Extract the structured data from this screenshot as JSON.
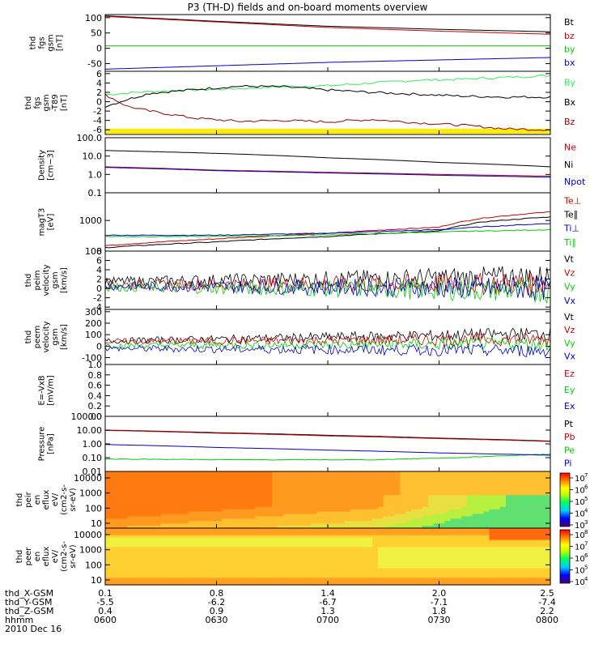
{
  "title": "P3 (TH-D) fields and on-board moments overview",
  "colors": {
    "black": "#000000",
    "red": "#cc0000",
    "green": "#00cc00",
    "blue": "#0000cc",
    "darkred": "#990000",
    "brightgreen": "#33ee55",
    "yellow": "#ffee00"
  },
  "chart_data": [
    {
      "type": "line",
      "panel": "fgs",
      "ylabel": [
        "thd",
        "fgs",
        "gsm",
        "[nT]"
      ],
      "yticks": [
        "100",
        "50",
        "0",
        "-50"
      ],
      "ylim": [
        -75,
        110
      ],
      "series": [
        {
          "name": "Bt",
          "color": "#000000",
          "x": [
            0,
            0.25,
            0.5,
            0.75,
            1
          ],
          "y": [
            106,
            88,
            72,
            62,
            54
          ]
        },
        {
          "name": "bz",
          "color": "#cc0000",
          "x": [
            0,
            0.25,
            0.5,
            0.75,
            1
          ],
          "y": [
            104,
            86,
            68,
            56,
            46
          ]
        },
        {
          "name": "by",
          "color": "#00cc00",
          "x": [
            0,
            1
          ],
          "y": [
            8,
            8
          ]
        },
        {
          "name": "bx",
          "color": "#0000cc",
          "x": [
            0,
            0.25,
            0.5,
            0.75,
            1
          ],
          "y": [
            -68,
            -57,
            -46,
            -38,
            -30
          ]
        }
      ]
    },
    {
      "type": "line",
      "panel": "fgs_t89",
      "ylabel": [
        "thd",
        "fgs",
        "gsm",
        "-T89",
        "[nT]"
      ],
      "yticks": [
        "6",
        "4",
        "2",
        "0",
        "-2",
        "-4",
        "-6"
      ],
      "ylim": [
        -7,
        6.5
      ],
      "series": [
        {
          "name": "By",
          "color": "#33ee55",
          "x": [
            0,
            0.1,
            0.2,
            0.3,
            0.4,
            0.5,
            0.6,
            0.7,
            0.8,
            0.9,
            1
          ],
          "y": [
            1.5,
            2.2,
            2.5,
            2.8,
            3.2,
            3.4,
            4,
            4.6,
            4.8,
            5.2,
            5.6
          ]
        },
        {
          "name": "Bx",
          "color": "#000000",
          "x": [
            0,
            0.05,
            0.1,
            0.2,
            0.3,
            0.4,
            0.5,
            0.6,
            0.7,
            0.8,
            0.9,
            1
          ],
          "y": [
            -1,
            0.5,
            1.8,
            2.6,
            3.3,
            3.2,
            2.5,
            2,
            1.6,
            1.2,
            1,
            1
          ]
        },
        {
          "name": "Bz",
          "color": "#990000",
          "x": [
            0,
            0.05,
            0.1,
            0.2,
            0.3,
            0.4,
            0.5,
            0.6,
            0.7,
            0.8,
            0.9,
            1
          ],
          "y": [
            1.5,
            -1,
            -2,
            -3.5,
            -4.2,
            -4,
            -4.3,
            -3.8,
            -4.5,
            -5,
            -5.8,
            -6
          ]
        }
      ]
    },
    {
      "type": "line",
      "panel": "density",
      "log": true,
      "ylabel": [
        "Density",
        "[cm−3]"
      ],
      "yticks": [
        "100.0",
        "10.0",
        "1.0",
        "0.1"
      ],
      "ylim": [
        0.1,
        100
      ],
      "series": [
        {
          "name": "Ne",
          "color": "#cc0000",
          "x": [
            0,
            0.25,
            0.5,
            0.75,
            1
          ],
          "y": [
            2.6,
            1.7,
            1.3,
            1,
            0.8
          ]
        },
        {
          "name": "Ni",
          "color": "#000000",
          "x": [
            0,
            0.25,
            0.5,
            0.75,
            1
          ],
          "y": [
            20,
            14,
            8,
            4.5,
            2.6
          ]
        },
        {
          "name": "Npot",
          "color": "#0000cc",
          "x": [
            0,
            0.25,
            0.5,
            0.75,
            1
          ],
          "y": [
            2.4,
            1.6,
            1.2,
            0.9,
            0.7
          ]
        }
      ]
    },
    {
      "type": "line",
      "panel": "temperature",
      "log": true,
      "ylabel": [
        "magT3",
        "[eV]"
      ],
      "yticks": [
        "1000",
        "100"
      ],
      "ylim": [
        100,
        8000
      ],
      "series": [
        {
          "name": "Te⊥",
          "color": "#cc0000",
          "x": [
            0,
            0.25,
            0.5,
            0.75,
            0.85,
            1
          ],
          "y": [
            150,
            250,
            380,
            600,
            1200,
            1900
          ]
        },
        {
          "name": "Te∥",
          "color": "#000000",
          "x": [
            0,
            0.25,
            0.5,
            0.75,
            0.85,
            1
          ],
          "y": [
            130,
            200,
            300,
            450,
            900,
            1300
          ]
        },
        {
          "name": "Ti⊥",
          "color": "#0000cc",
          "x": [
            0,
            0.25,
            0.5,
            0.75,
            1
          ],
          "y": [
            330,
            330,
            380,
            500,
            800
          ]
        },
        {
          "name": "Ti∥",
          "color": "#00cc00",
          "x": [
            0,
            0.25,
            0.5,
            0.75,
            1
          ],
          "y": [
            300,
            300,
            340,
            420,
            500
          ]
        }
      ]
    },
    {
      "type": "line",
      "panel": "velocity1",
      "ylabel": [
        "thd",
        "peim",
        "velocity",
        "gsm",
        "[km/s]"
      ],
      "yticks": [
        "8",
        "6",
        "4",
        "2",
        "0",
        "-2",
        "-4"
      ],
      "ylim": [
        -4.5,
        8
      ],
      "series": [
        {
          "name": "Vt",
          "color": "#000000",
          "x": [
            0,
            1
          ],
          "y": [
            1.5,
            2.5
          ]
        },
        {
          "name": "Vz",
          "color": "#cc0000",
          "x": [
            0,
            1
          ],
          "y": [
            0.8,
            1
          ]
        },
        {
          "name": "Vy",
          "color": "#00cc00",
          "x": [
            0,
            1
          ],
          "y": [
            0.3,
            -0.5
          ]
        },
        {
          "name": "Vx",
          "color": "#0000cc",
          "x": [
            0,
            1
          ],
          "y": [
            0.5,
            0
          ]
        }
      ]
    },
    {
      "type": "line",
      "panel": "velocity2",
      "ylabel": [
        "thd",
        "peem",
        "velocity",
        "gsm",
        "[km/s]"
      ],
      "yticks": [
        "300",
        "200",
        "100",
        "0",
        "-100"
      ],
      "ylim": [
        -160,
        320
      ],
      "series": [
        {
          "name": "Vt",
          "color": "#000000",
          "x": [
            0,
            1
          ],
          "y": [
            45,
            110
          ]
        },
        {
          "name": "Vz",
          "color": "#cc0000",
          "x": [
            0,
            1
          ],
          "y": [
            40,
            60
          ]
        },
        {
          "name": "Vy",
          "color": "#00cc00",
          "x": [
            0,
            1
          ],
          "y": [
            5,
            20
          ]
        },
        {
          "name": "Vx",
          "color": "#0000cc",
          "x": [
            0,
            1
          ],
          "y": [
            -20,
            -40
          ]
        }
      ]
    },
    {
      "type": "line",
      "panel": "efield",
      "ylabel": [
        "E=-VxB",
        "[mV/m]"
      ],
      "yticks": [
        "1.0",
        "0.8",
        "0.6",
        "0.4",
        "0.2",
        "0.0"
      ],
      "ylim": [
        0,
        1
      ],
      "series": [
        {
          "name": "Ez",
          "color": "#cc0000",
          "x": [],
          "y": []
        },
        {
          "name": "Ey",
          "color": "#00cc00",
          "x": [],
          "y": []
        },
        {
          "name": "Ex",
          "color": "#0000cc",
          "x": [],
          "y": []
        }
      ]
    },
    {
      "type": "line",
      "panel": "pressure",
      "log": true,
      "ylabel": [
        "Pressure",
        "[nPa]"
      ],
      "yticks": [
        "100.00",
        "10.00",
        "1.00",
        "0.10",
        "0.01"
      ],
      "ylim": [
        0.01,
        100
      ],
      "series": [
        {
          "name": "Pt",
          "color": "#000000",
          "x": [
            0,
            0.25,
            0.5,
            0.75,
            1
          ],
          "y": [
            10,
            6.5,
            4.2,
            2.6,
            1.6
          ]
        },
        {
          "name": "Pb",
          "color": "#cc0000",
          "x": [
            0,
            0.25,
            0.5,
            0.75,
            1
          ],
          "y": [
            9.5,
            6,
            3.8,
            2.4,
            1.5
          ]
        },
        {
          "name": "Pe",
          "color": "#00cc00",
          "x": [
            0,
            0.3,
            0.6,
            0.8,
            1
          ],
          "y": [
            0.08,
            0.07,
            0.07,
            0.1,
            0.18
          ]
        },
        {
          "name": "Pi",
          "color": "#0000cc",
          "x": [
            0,
            0.25,
            0.5,
            0.75,
            1
          ],
          "y": [
            0.9,
            0.55,
            0.35,
            0.22,
            0.15
          ]
        }
      ]
    },
    {
      "type": "heatmap",
      "panel": "peir",
      "ylabel": [
        "thd",
        "peir",
        "en",
        "eflux",
        "eV/",
        "(cm2-s-",
        "sr-eV)"
      ],
      "yticks": [
        "10000",
        "1000",
        "100",
        "10"
      ],
      "colorbar": [
        "10",
        "10",
        "10",
        "10",
        "10"
      ],
      "colorbar_exp": [
        "7",
        "6",
        "5",
        "4",
        "3"
      ]
    },
    {
      "type": "heatmap",
      "panel": "peer",
      "ylabel": [
        "thd",
        "peer",
        "en",
        "eflux",
        "eV/",
        "(cm2-s-",
        "sr-eV)"
      ],
      "yticks": [
        "10000",
        "1000",
        "100",
        "10"
      ],
      "colorbar": [
        "10",
        "10",
        "10",
        "10",
        "10"
      ],
      "colorbar_exp": [
        "8",
        "7",
        "6",
        "5",
        "4"
      ]
    }
  ],
  "xaxis": {
    "rows": [
      {
        "label": "thd_X-GSM",
        "values": [
          "0.1",
          "0.8",
          "1.4",
          "2.0",
          "2.5"
        ]
      },
      {
        "label": "thd_Y-GSM",
        "values": [
          "-5.5",
          "-6.2",
          "-6.7",
          "-7.1",
          "-7.4"
        ]
      },
      {
        "label": "thd_Z-GSM",
        "values": [
          "0.4",
          "0.9",
          "1.3",
          "1.8",
          "2.2"
        ]
      },
      {
        "label": "hhmm",
        "values": [
          "0600",
          "0630",
          "0700",
          "0730",
          "0800"
        ]
      }
    ],
    "date": "2010 Dec 16"
  }
}
